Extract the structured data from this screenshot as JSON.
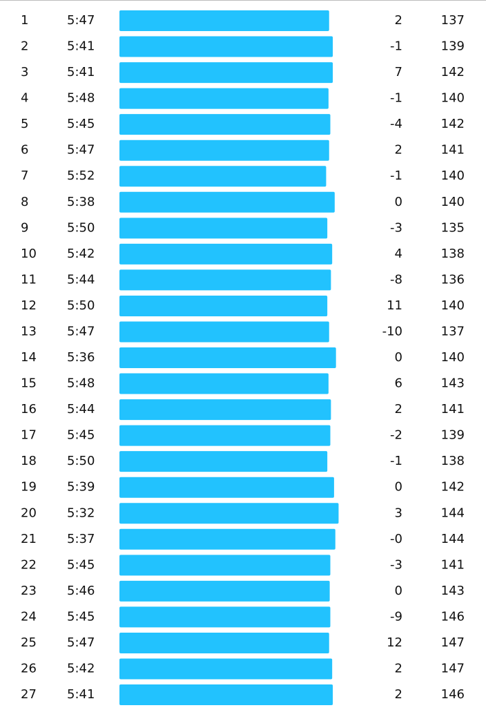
{
  "table": {
    "rows": [
      [
        "1",
        "5:47",
        "2",
        "137"
      ],
      [
        "2",
        "5:41",
        "-1",
        "139"
      ],
      [
        "3",
        "5:41",
        "7",
        "142"
      ],
      [
        "4",
        "5:48",
        "-1",
        "140"
      ],
      [
        "5",
        "5:45",
        "-4",
        "142"
      ],
      [
        "6",
        "5:47",
        "2",
        "141"
      ],
      [
        "7",
        "5:52",
        "-1",
        "140"
      ],
      [
        "8",
        "5:38",
        "0",
        "140"
      ],
      [
        "9",
        "5:50",
        "-3",
        "135"
      ],
      [
        "10",
        "5:42",
        "4",
        "138"
      ],
      [
        "11",
        "5:44",
        "-8",
        "136"
      ],
      [
        "12",
        "5:50",
        "11",
        "140"
      ],
      [
        "13",
        "5:47",
        "-10",
        "137"
      ],
      [
        "14",
        "5:36",
        "0",
        "140"
      ],
      [
        "15",
        "5:48",
        "6",
        "143"
      ],
      [
        "16",
        "5:44",
        "2",
        "141"
      ],
      [
        "17",
        "5:45",
        "-2",
        "139"
      ],
      [
        "18",
        "5:50",
        "-1",
        "138"
      ],
      [
        "19",
        "5:39",
        "0",
        "142"
      ],
      [
        "20",
        "5:32",
        "3",
        "144"
      ],
      [
        "21",
        "5:37",
        "-0",
        "144"
      ],
      [
        "22",
        "5:45",
        "-3",
        "141"
      ],
      [
        "23",
        "5:46",
        "0",
        "143"
      ],
      [
        "24",
        "5:45",
        "-9",
        "146"
      ],
      [
        "25",
        "5:47",
        "12",
        "147"
      ],
      [
        "26",
        "5:42",
        "2",
        "147"
      ],
      [
        "27",
        "5:41",
        "2",
        "146"
      ]
    ]
  }
}
